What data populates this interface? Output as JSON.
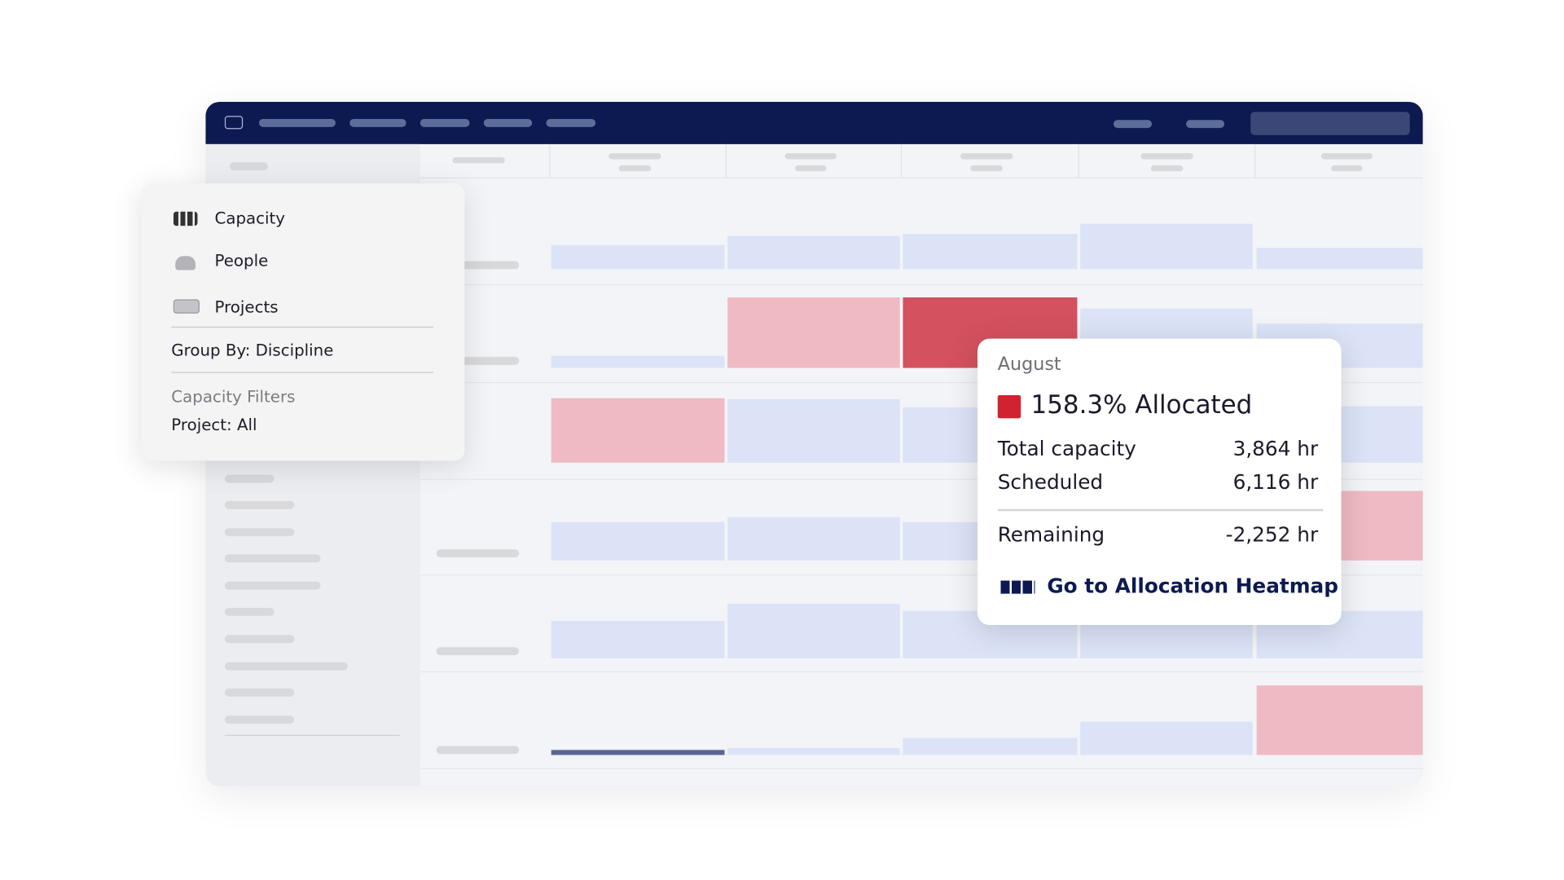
{
  "menu": {
    "items": [
      "Capacity",
      "People",
      "Projects"
    ],
    "group_by": {
      "label": "Group By:",
      "value": "Discipline"
    },
    "filters_title": "Capacity Filters",
    "filter": {
      "label": "Project:",
      "value": "All"
    }
  },
  "tooltip": {
    "month": "August",
    "allocated": "158.3% Allocated",
    "rows": [
      {
        "label": "Total capacity",
        "value": "3,864 hr"
      },
      {
        "label": "Scheduled",
        "value": "6,116 hr"
      },
      {
        "label": "Remaining",
        "value": "-2,252 hr"
      }
    ],
    "link": "Go to Allocation Heatmap"
  }
}
